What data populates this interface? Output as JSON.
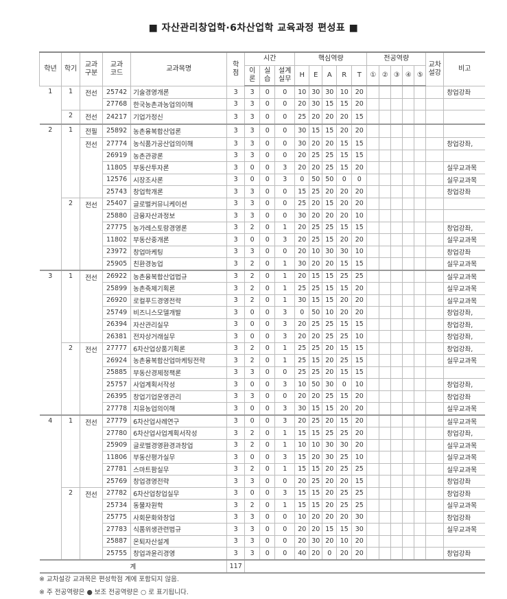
{
  "title": "■ 자산관리창업학·6차산업학 교육과정 편성표 ■",
  "header": {
    "year": "학년",
    "semester": "학기",
    "category": "교과\n구분",
    "code": "교과\n코드",
    "name": "교과목명",
    "credits": "학\n점",
    "hours": "시간",
    "theory": "이\n론",
    "practice": "실\n습",
    "design": "설계\n실무",
    "core": "핵심역량",
    "core_items": [
      "H",
      "E",
      "A",
      "R",
      "T"
    ],
    "major": "전공역량",
    "major_items": [
      "①",
      "②",
      "③",
      "④",
      "⑤"
    ],
    "cross": "교차\n설강",
    "note": "비고"
  },
  "years": [
    {
      "year": "1",
      "semesters": [
        {
          "sem": "1",
          "groups": [
            {
              "cat": "전선",
              "courses": [
                [
                  "25742",
                  "기술경영개론",
                  "3",
                  "3",
                  "0",
                  "0",
                  "10",
                  "30",
                  "30",
                  "10",
                  "20",
                  "창업강좌"
                ],
                [
                  "27768",
                  "한국농촌과농업의이해",
                  "3",
                  "3",
                  "0",
                  "0",
                  "20",
                  "30",
                  "15",
                  "15",
                  "20",
                  ""
                ]
              ]
            }
          ]
        },
        {
          "sem": "2",
          "groups": [
            {
              "cat": "전선",
              "courses": [
                [
                  "24217",
                  "기업가정신",
                  "3",
                  "3",
                  "0",
                  "0",
                  "25",
                  "20",
                  "20",
                  "20",
                  "15",
                  ""
                ]
              ]
            }
          ]
        }
      ]
    },
    {
      "year": "2",
      "semesters": [
        {
          "sem": "1",
          "groups": [
            {
              "cat": "전필",
              "courses": [
                [
                  "25892",
                  "농촌융복합산업론",
                  "3",
                  "3",
                  "0",
                  "0",
                  "30",
                  "15",
                  "15",
                  "20",
                  "20",
                  ""
                ]
              ]
            },
            {
              "cat": "전선",
              "courses": [
                [
                  "27774",
                  "농식품가공산업의이해",
                  "3",
                  "3",
                  "0",
                  "0",
                  "30",
                  "20",
                  "20",
                  "15",
                  "15",
                  "창업강좌,"
                ],
                [
                  "26919",
                  "농촌관광론",
                  "3",
                  "3",
                  "0",
                  "0",
                  "20",
                  "25",
                  "25",
                  "15",
                  "15",
                  ""
                ],
                [
                  "11805",
                  "부동산투자론",
                  "3",
                  "0",
                  "0",
                  "3",
                  "20",
                  "20",
                  "25",
                  "15",
                  "20",
                  "실무교과목"
                ],
                [
                  "12576",
                  "시장조사론",
                  "3",
                  "0",
                  "0",
                  "3",
                  "0",
                  "50",
                  "50",
                  "0",
                  "0",
                  "실무교과목"
                ],
                [
                  "25743",
                  "창업학개론",
                  "3",
                  "3",
                  "0",
                  "0",
                  "15",
                  "25",
                  "20",
                  "20",
                  "20",
                  "창업강좌"
                ]
              ]
            }
          ]
        },
        {
          "sem": "2",
          "groups": [
            {
              "cat": "전선",
              "courses": [
                [
                  "25407",
                  "글로벌커뮤니케이션",
                  "3",
                  "3",
                  "0",
                  "0",
                  "25",
                  "20",
                  "15",
                  "20",
                  "20",
                  ""
                ],
                [
                  "25880",
                  "금융자산과정보",
                  "3",
                  "3",
                  "0",
                  "0",
                  "30",
                  "20",
                  "20",
                  "20",
                  "10",
                  ""
                ],
                [
                  "27775",
                  "농가레스토랑경영론",
                  "3",
                  "2",
                  "0",
                  "1",
                  "20",
                  "25",
                  "25",
                  "15",
                  "15",
                  "창업강좌,"
                ],
                [
                  "11802",
                  "부동산중개론",
                  "3",
                  "0",
                  "0",
                  "3",
                  "20",
                  "25",
                  "15",
                  "20",
                  "20",
                  "실무교과목"
                ],
                [
                  "23972",
                  "창업마케팅",
                  "3",
                  "3",
                  "0",
                  "0",
                  "20",
                  "10",
                  "30",
                  "30",
                  "10",
                  "창업강좌"
                ],
                [
                  "25905",
                  "친환경농업",
                  "3",
                  "2",
                  "0",
                  "1",
                  "30",
                  "20",
                  "20",
                  "15",
                  "15",
                  "실무교과목"
                ]
              ]
            }
          ]
        }
      ]
    },
    {
      "year": "3",
      "semesters": [
        {
          "sem": "1",
          "groups": [
            {
              "cat": "전선",
              "courses": [
                [
                  "26922",
                  "농촌융복합산업법규",
                  "3",
                  "2",
                  "0",
                  "1",
                  "20",
                  "15",
                  "15",
                  "25",
                  "25",
                  "실무교과목"
                ],
                [
                  "25899",
                  "농촌축제기획론",
                  "3",
                  "2",
                  "0",
                  "1",
                  "25",
                  "25",
                  "15",
                  "15",
                  "20",
                  "실무교과목"
                ],
                [
                  "26920",
                  "로컬푸드경영전략",
                  "3",
                  "2",
                  "0",
                  "1",
                  "30",
                  "15",
                  "15",
                  "20",
                  "20",
                  "실무교과목"
                ],
                [
                  "25749",
                  "비즈니스모델개발",
                  "3",
                  "0",
                  "0",
                  "3",
                  "0",
                  "50",
                  "10",
                  "20",
                  "20",
                  "창업강좌,"
                ],
                [
                  "26394",
                  "자산관리실무",
                  "3",
                  "0",
                  "0",
                  "3",
                  "20",
                  "25",
                  "25",
                  "15",
                  "15",
                  "창업강좌,"
                ],
                [
                  "26381",
                  "전자상거래실무",
                  "3",
                  "0",
                  "0",
                  "3",
                  "20",
                  "20",
                  "25",
                  "25",
                  "10",
                  "창업강좌,"
                ]
              ]
            }
          ]
        },
        {
          "sem": "2",
          "groups": [
            {
              "cat": "전선",
              "courses": [
                [
                  "27777",
                  "6차산업상품기획론",
                  "3",
                  "2",
                  "0",
                  "1",
                  "25",
                  "25",
                  "20",
                  "15",
                  "15",
                  "창업강좌,"
                ],
                [
                  "26924",
                  "농촌융복합산업마케팅전략",
                  "3",
                  "2",
                  "0",
                  "1",
                  "25",
                  "15",
                  "20",
                  "25",
                  "15",
                  "실무교과목"
                ],
                [
                  "25885",
                  "부동산경제정책론",
                  "3",
                  "3",
                  "0",
                  "0",
                  "25",
                  "25",
                  "20",
                  "15",
                  "15",
                  ""
                ],
                [
                  "25757",
                  "사업계획서작성",
                  "3",
                  "0",
                  "0",
                  "3",
                  "10",
                  "50",
                  "30",
                  "0",
                  "10",
                  "창업강좌,"
                ],
                [
                  "26395",
                  "창업기업운영관리",
                  "3",
                  "3",
                  "0",
                  "0",
                  "20",
                  "20",
                  "25",
                  "15",
                  "20",
                  "창업강좌"
                ],
                [
                  "27778",
                  "치유농업의이해",
                  "3",
                  "0",
                  "0",
                  "3",
                  "30",
                  "15",
                  "15",
                  "20",
                  "20",
                  "실무교과목"
                ]
              ]
            }
          ]
        }
      ]
    },
    {
      "year": "4",
      "semesters": [
        {
          "sem": "1",
          "groups": [
            {
              "cat": "전선",
              "courses": [
                [
                  "27779",
                  "6차산업사례연구",
                  "3",
                  "0",
                  "0",
                  "3",
                  "20",
                  "25",
                  "20",
                  "15",
                  "20",
                  "실무교과목"
                ],
                [
                  "27780",
                  "6차산업사업계획서작성",
                  "3",
                  "2",
                  "0",
                  "1",
                  "15",
                  "15",
                  "25",
                  "25",
                  "20",
                  "창업강좌,"
                ],
                [
                  "25909",
                  "글로벌경영환경과창업",
                  "3",
                  "2",
                  "0",
                  "1",
                  "10",
                  "10",
                  "30",
                  "30",
                  "20",
                  "실무교과목"
                ],
                [
                  "11806",
                  "부동산평가실무",
                  "3",
                  "0",
                  "0",
                  "3",
                  "15",
                  "20",
                  "30",
                  "25",
                  "10",
                  "실무교과목"
                ],
                [
                  "27781",
                  "스마트팜실무",
                  "3",
                  "2",
                  "0",
                  "1",
                  "15",
                  "15",
                  "20",
                  "25",
                  "25",
                  "실무교과목"
                ],
                [
                  "25769",
                  "창업경영전략",
                  "3",
                  "3",
                  "0",
                  "0",
                  "20",
                  "25",
                  "20",
                  "20",
                  "15",
                  "창업강좌"
                ]
              ]
            }
          ]
        },
        {
          "sem": "2",
          "groups": [
            {
              "cat": "전선",
              "courses": [
                [
                  "27782",
                  "6차산업창업실무",
                  "3",
                  "0",
                  "0",
                  "3",
                  "15",
                  "15",
                  "20",
                  "25",
                  "25",
                  "창업강좌"
                ],
                [
                  "25734",
                  "동물자원학",
                  "3",
                  "2",
                  "0",
                  "1",
                  "15",
                  "15",
                  "20",
                  "25",
                  "25",
                  "실무교과목"
                ],
                [
                  "25775",
                  "사회문화와창업",
                  "3",
                  "3",
                  "0",
                  "0",
                  "10",
                  "20",
                  "20",
                  "20",
                  "30",
                  "창업강좌"
                ],
                [
                  "27783",
                  "식품위생관련법규",
                  "3",
                  "3",
                  "0",
                  "0",
                  "20",
                  "20",
                  "15",
                  "15",
                  "30",
                  "실무교과목"
                ],
                [
                  "25887",
                  "온퇴자산설계",
                  "3",
                  "3",
                  "0",
                  "0",
                  "20",
                  "30",
                  "20",
                  "10",
                  "20",
                  ""
                ],
                [
                  "25755",
                  "창업과윤리경영",
                  "3",
                  "3",
                  "0",
                  "0",
                  "40",
                  "20",
                  "0",
                  "20",
                  "20",
                  "창업강좌"
                ]
              ]
            }
          ]
        }
      ]
    }
  ],
  "total": {
    "label": "계",
    "credits": "117"
  },
  "notes": [
    "※ 교차설강 교과목은 편성학점 계에 포함되지 않음.",
    "※ 주 전공역량은 ● 보조 전공역량은 ○ 로 표기됩니다."
  ]
}
